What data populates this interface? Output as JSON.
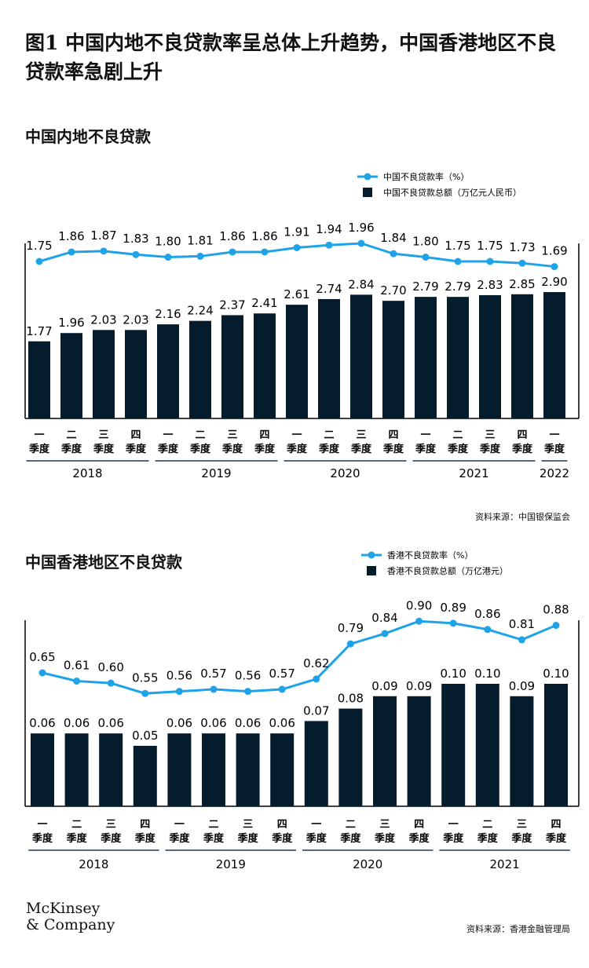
{
  "title": "图1 中国内地不良贷款率呈总体上升趋势，中国香港地区不良贷款率急剧上升",
  "chart_data": [
    {
      "type": "bar+line",
      "title": "中国内地不良贷款",
      "categories": [
        [
          "一",
          "季度"
        ],
        [
          "二",
          "季度"
        ],
        [
          "三",
          "季度"
        ],
        [
          "四",
          "季度"
        ],
        [
          "一",
          "季度"
        ],
        [
          "二",
          "季度"
        ],
        [
          "三",
          "季度"
        ],
        [
          "四",
          "季度"
        ],
        [
          "一",
          "季度"
        ],
        [
          "二",
          "季度"
        ],
        [
          "三",
          "季度"
        ],
        [
          "四",
          "季度"
        ],
        [
          "一",
          "季度"
        ],
        [
          "二",
          "季度"
        ],
        [
          "三",
          "季度"
        ],
        [
          "四",
          "季度"
        ],
        [
          "一",
          "季度"
        ]
      ],
      "years": [
        {
          "label": "2018",
          "count": 4
        },
        {
          "label": "2019",
          "count": 4
        },
        {
          "label": "2020",
          "count": 4
        },
        {
          "label": "2021",
          "count": 4
        },
        {
          "label": "2022",
          "count": 1
        }
      ],
      "series": [
        {
          "name": "中国不良贷款率（%）",
          "type": "line",
          "color": "#1fa3e8",
          "values": [
            1.75,
            1.86,
            1.87,
            1.83,
            1.8,
            1.81,
            1.86,
            1.86,
            1.91,
            1.94,
            1.96,
            1.84,
            1.8,
            1.75,
            1.75,
            1.73,
            1.69
          ]
        },
        {
          "name": "中国不良贷款总额（万亿元人民币）",
          "type": "bar",
          "color": "#051c2c",
          "values": [
            1.77,
            1.96,
            2.03,
            2.03,
            2.16,
            2.24,
            2.37,
            2.41,
            2.61,
            2.74,
            2.84,
            2.7,
            2.79,
            2.79,
            2.83,
            2.85,
            2.9
          ]
        }
      ],
      "source": "资料来源：中国银保监会"
    },
    {
      "type": "bar+line",
      "title": "中国香港地区不良贷款",
      "categories": [
        [
          "一",
          "季度"
        ],
        [
          "二",
          "季度"
        ],
        [
          "三",
          "季度"
        ],
        [
          "四",
          "季度"
        ],
        [
          "一",
          "季度"
        ],
        [
          "二",
          "季度"
        ],
        [
          "三",
          "季度"
        ],
        [
          "四",
          "季度"
        ],
        [
          "一",
          "季度"
        ],
        [
          "二",
          "季度"
        ],
        [
          "三",
          "季度"
        ],
        [
          "四",
          "季度"
        ],
        [
          "一",
          "季度"
        ],
        [
          "二",
          "季度"
        ],
        [
          "三",
          "季度"
        ],
        [
          "四",
          "季度"
        ]
      ],
      "years": [
        {
          "label": "2018",
          "count": 4
        },
        {
          "label": "2019",
          "count": 4
        },
        {
          "label": "2020",
          "count": 4
        },
        {
          "label": "2021",
          "count": 4
        }
      ],
      "series": [
        {
          "name": "香港不良贷款率（%）",
          "type": "line",
          "color": "#1fa3e8",
          "values": [
            0.65,
            0.61,
            0.6,
            0.55,
            0.56,
            0.57,
            0.56,
            0.57,
            0.62,
            0.79,
            0.84,
            0.9,
            0.89,
            0.86,
            0.81,
            0.88
          ]
        },
        {
          "name": "香港不良贷款总额（万亿港元）",
          "type": "bar",
          "color": "#051c2c",
          "values": [
            0.06,
            0.06,
            0.06,
            0.05,
            0.06,
            0.06,
            0.06,
            0.06,
            0.07,
            0.08,
            0.09,
            0.09,
            0.1,
            0.1,
            0.09,
            0.1
          ]
        }
      ],
      "source": "资料来源：香港金融管理局"
    }
  ],
  "logo": [
    "McKinsey",
    "& Company"
  ]
}
